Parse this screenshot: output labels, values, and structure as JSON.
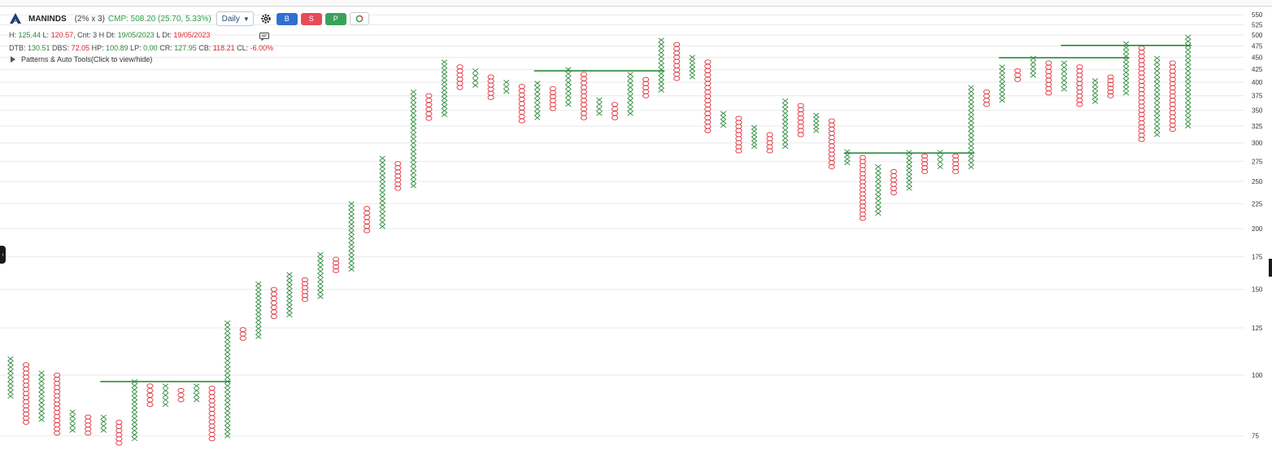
{
  "header": {
    "symbol": "MANINDS",
    "box_size": "(2% x 3)",
    "cmp": "CMP: 508.20 (25.70, 5.33%)",
    "timeframe": "Daily",
    "buttons": {
      "buy": "B",
      "sell": "S",
      "portfolio": "P"
    }
  },
  "info_line1": {
    "h_label": "H: ",
    "h_value": "125.44",
    "l_label": " L: ",
    "l_value": "120.57",
    "cnt_label": ", Cnt: ",
    "cnt_value": "3 H",
    "hdt_label": " Dt: ",
    "hdt_value": "19/05/2023",
    "ldt_label": " L Dt: ",
    "ldt_value": "19/05/2023"
  },
  "info_line2": {
    "dtb_label": "DTB: ",
    "dtb_value": "130.51",
    "dbs_label": " DBS: ",
    "dbs_value": "72.05",
    "hp_label": " HP: ",
    "hp_value": "100.89",
    "lp_label": " LP: ",
    "lp_value": "0.00",
    "cr_label": " CR: ",
    "cr_value": "127.95",
    "cb_label": " CB: ",
    "cb_value": "118.21",
    "cl_label": " CL: ",
    "cl_value": "-6.00%"
  },
  "patterns_label": "Patterns & Auto Tools(Click to view/hide)",
  "colors": {
    "x_color": "#2e8b3c",
    "o_color": "#e0323c",
    "line_color": "#2e8b3c",
    "grid": "#e9e9e9"
  },
  "icons": [
    "logo-icon",
    "chevron-down-icon",
    "gear-icon",
    "comment-icon",
    "circle-icon"
  ],
  "chart_data": {
    "type": "point-and-figure",
    "scale": "log",
    "box_pct": 2,
    "reversal": 3,
    "y_ticks": [
      75,
      100,
      125,
      150,
      175,
      200,
      225,
      250,
      275,
      300,
      325,
      350,
      375,
      400,
      425,
      450,
      475,
      500,
      525,
      550
    ],
    "columns": [
      {
        "t": "X",
        "lo": 90.5,
        "hi": 108
      },
      {
        "t": "O",
        "lo": 80,
        "hi": 105
      },
      {
        "t": "X",
        "lo": 81,
        "hi": 101
      },
      {
        "t": "O",
        "lo": 76,
        "hi": 100
      },
      {
        "t": "X",
        "lo": 77,
        "hi": 84
      },
      {
        "t": "O",
        "lo": 76,
        "hi": 82
      },
      {
        "t": "X",
        "lo": 77,
        "hi": 82
      },
      {
        "t": "O",
        "lo": 72.5,
        "hi": 80
      },
      {
        "t": "X",
        "lo": 74,
        "hi": 97
      },
      {
        "t": "O",
        "lo": 87,
        "hi": 95
      },
      {
        "t": "X",
        "lo": 87,
        "hi": 95
      },
      {
        "t": "O",
        "lo": 89,
        "hi": 93
      },
      {
        "t": "X",
        "lo": 89,
        "hi": 95
      },
      {
        "t": "O",
        "lo": 74,
        "hi": 94
      },
      {
        "t": "X",
        "lo": 75,
        "hi": 128
      },
      {
        "t": "O",
        "lo": 119,
        "hi": 124
      },
      {
        "t": "X",
        "lo": 120,
        "hi": 154
      },
      {
        "t": "O",
        "lo": 132,
        "hi": 150
      },
      {
        "t": "X",
        "lo": 133,
        "hi": 161
      },
      {
        "t": "O",
        "lo": 143,
        "hi": 157
      },
      {
        "t": "X",
        "lo": 145,
        "hi": 177
      },
      {
        "t": "O",
        "lo": 164,
        "hi": 173
      },
      {
        "t": "X",
        "lo": 165,
        "hi": 225
      },
      {
        "t": "O",
        "lo": 198,
        "hi": 220
      },
      {
        "t": "X",
        "lo": 202,
        "hi": 279
      },
      {
        "t": "O",
        "lo": 242,
        "hi": 272
      },
      {
        "t": "X",
        "lo": 245,
        "hi": 382
      },
      {
        "t": "O",
        "lo": 337,
        "hi": 375
      },
      {
        "t": "X",
        "lo": 343,
        "hi": 440
      },
      {
        "t": "O",
        "lo": 390,
        "hi": 430
      },
      {
        "t": "X",
        "lo": 394,
        "hi": 422
      },
      {
        "t": "O",
        "lo": 372,
        "hi": 410
      },
      {
        "t": "X",
        "lo": 383,
        "hi": 400
      },
      {
        "t": "O",
        "lo": 333,
        "hi": 392
      },
      {
        "t": "X",
        "lo": 338,
        "hi": 398
      },
      {
        "t": "O",
        "lo": 353,
        "hi": 388
      },
      {
        "t": "X",
        "lo": 360,
        "hi": 425
      },
      {
        "t": "O",
        "lo": 338,
        "hi": 415
      },
      {
        "t": "X",
        "lo": 345,
        "hi": 368
      },
      {
        "t": "O",
        "lo": 338,
        "hi": 360
      },
      {
        "t": "X",
        "lo": 345,
        "hi": 415
      },
      {
        "t": "O",
        "lo": 375,
        "hi": 405
      },
      {
        "t": "X",
        "lo": 385,
        "hi": 488
      },
      {
        "t": "O",
        "lo": 407,
        "hi": 478
      },
      {
        "t": "X",
        "lo": 410,
        "hi": 450
      },
      {
        "t": "O",
        "lo": 318,
        "hi": 440
      },
      {
        "t": "X",
        "lo": 326,
        "hi": 345
      },
      {
        "t": "O",
        "lo": 289,
        "hi": 337
      },
      {
        "t": "X",
        "lo": 295,
        "hi": 323
      },
      {
        "t": "O",
        "lo": 289,
        "hi": 312
      },
      {
        "t": "X",
        "lo": 295,
        "hi": 366
      },
      {
        "t": "O",
        "lo": 312,
        "hi": 358
      },
      {
        "t": "X",
        "lo": 318,
        "hi": 342
      },
      {
        "t": "O",
        "lo": 268,
        "hi": 333
      },
      {
        "t": "X",
        "lo": 273,
        "hi": 288
      },
      {
        "t": "O",
        "lo": 210,
        "hi": 280
      },
      {
        "t": "X",
        "lo": 215,
        "hi": 268
      },
      {
        "t": "O",
        "lo": 237,
        "hi": 262
      },
      {
        "t": "X",
        "lo": 242,
        "hi": 287
      },
      {
        "t": "O",
        "lo": 262,
        "hi": 282
      },
      {
        "t": "X",
        "lo": 268,
        "hi": 287
      },
      {
        "t": "O",
        "lo": 262,
        "hi": 282
      },
      {
        "t": "X",
        "lo": 268,
        "hi": 390
      },
      {
        "t": "O",
        "lo": 360,
        "hi": 382
      },
      {
        "t": "X",
        "lo": 367,
        "hi": 430
      },
      {
        "t": "O",
        "lo": 405,
        "hi": 422
      },
      {
        "t": "X",
        "lo": 413,
        "hi": 448
      },
      {
        "t": "O",
        "lo": 380,
        "hi": 438
      },
      {
        "t": "X",
        "lo": 387,
        "hi": 438
      },
      {
        "t": "O",
        "lo": 360,
        "hi": 430
      },
      {
        "t": "X",
        "lo": 365,
        "hi": 403
      },
      {
        "t": "O",
        "lo": 375,
        "hi": 410
      },
      {
        "t": "X",
        "lo": 380,
        "hi": 480
      },
      {
        "t": "O",
        "lo": 305,
        "hi": 470
      },
      {
        "t": "X",
        "lo": 312,
        "hi": 448
      },
      {
        "t": "O",
        "lo": 320,
        "hi": 438
      },
      {
        "t": "X",
        "lo": 325,
        "hi": 495
      }
    ],
    "trend_lines": [
      {
        "from_col": 6,
        "to_col": 14,
        "y": 97
      },
      {
        "from_col": 34,
        "to_col": 42,
        "y": 422
      },
      {
        "from_col": 54,
        "to_col": 62,
        "y": 286
      },
      {
        "from_col": 64,
        "to_col": 72,
        "y": 449
      },
      {
        "from_col": 68,
        "to_col": 76,
        "y": 476
      }
    ]
  }
}
